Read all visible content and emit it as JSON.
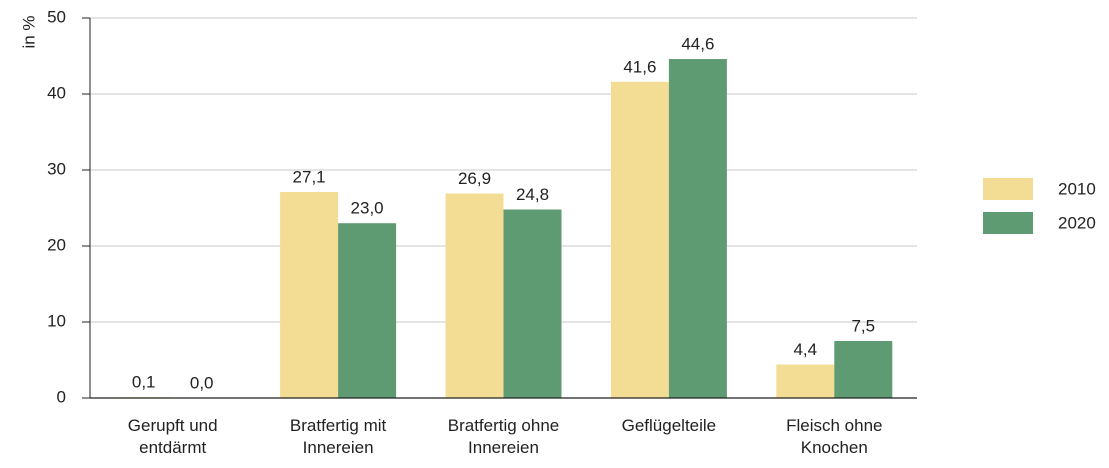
{
  "chart_data": {
    "type": "bar",
    "y_label": "in %",
    "categories": [
      "Gerupft und entdärmt",
      "Bratfertig mit Innereien",
      "Bratfertig ohne Innereien",
      "Geflügelteile",
      "Fleisch ohne Knochen"
    ],
    "series": [
      {
        "name": "2010",
        "color": "#f3dd94",
        "values": [
          0.1,
          27.1,
          26.9,
          41.6,
          4.4
        ],
        "value_labels": [
          "0,1",
          "27,1",
          "26,9",
          "41,6",
          "4,4"
        ]
      },
      {
        "name": "2020",
        "color": "#5e9a72",
        "values": [
          0.0,
          23.0,
          24.8,
          44.6,
          7.5
        ],
        "value_labels": [
          "0,0",
          "23,0",
          "24,8",
          "44,6",
          "7,5"
        ]
      }
    ],
    "ylim": [
      0,
      50
    ],
    "yticks": [
      0,
      10,
      20,
      30,
      40,
      50
    ],
    "grid": true,
    "legend": "right"
  }
}
